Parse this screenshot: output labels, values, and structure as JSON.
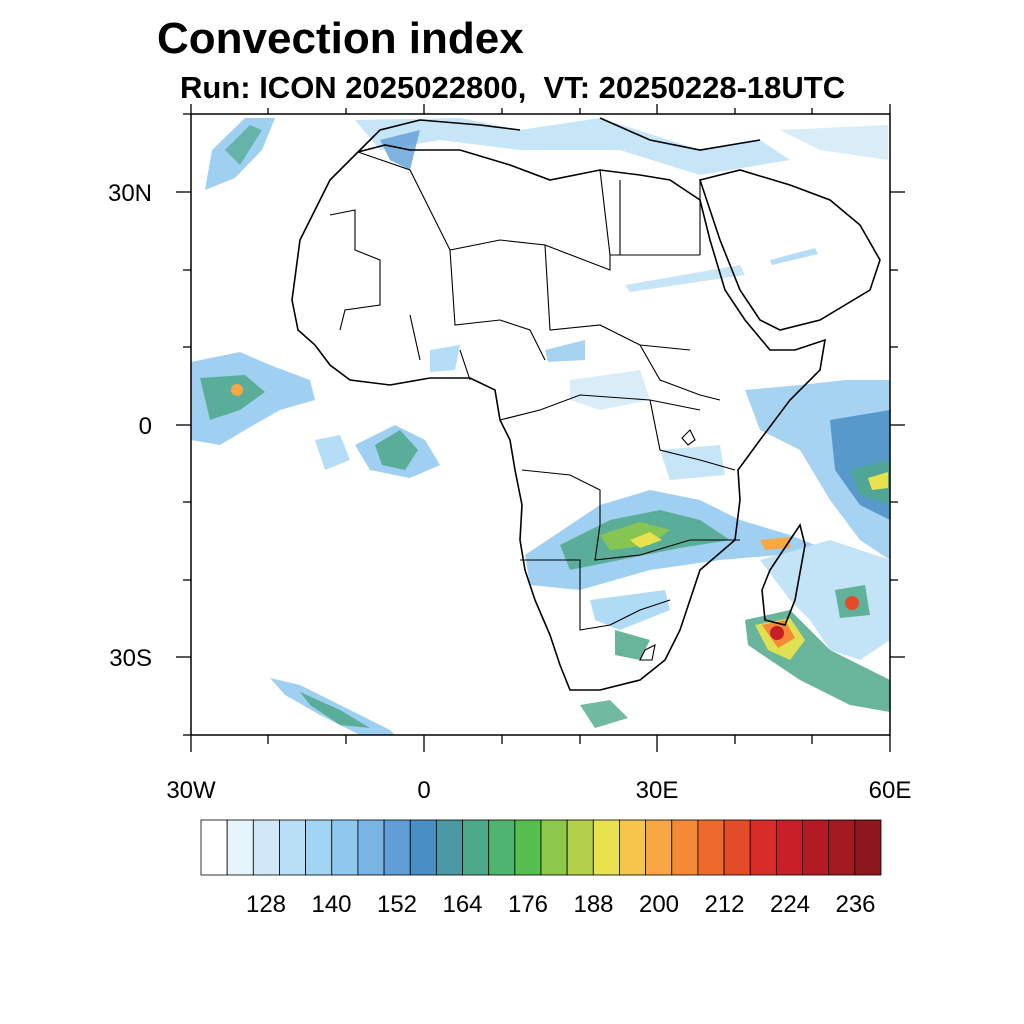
{
  "title": "Convection index",
  "subtitle": "Run: ICON 2025022800,  VT: 20250228-18UTC",
  "map": {
    "extent": {
      "lon_min": -30,
      "lon_max": 60,
      "lat_min": -40,
      "lat_max": 40
    },
    "lat_ticks": [
      {
        "label": "30N",
        "lat": 30
      },
      {
        "label": "0",
        "lat": 0
      },
      {
        "label": "30S",
        "lat": -30
      }
    ],
    "lon_ticks": [
      {
        "label": "30W",
        "lon": -30
      },
      {
        "label": "0",
        "lon": 0
      },
      {
        "label": "30E",
        "lon": 30
      },
      {
        "label": "60E",
        "lon": 60
      }
    ]
  },
  "colorbar": {
    "labels": [
      "128",
      "140",
      "152",
      "164",
      "176",
      "188",
      "200",
      "212",
      "224",
      "236"
    ],
    "colors": [
      "#ffffff",
      "#e6f4fc",
      "#cfe9f8",
      "#b8def5",
      "#a2d5f3",
      "#8ec8ee",
      "#78b5e3",
      "#5f9fd6",
      "#4a8ec6",
      "#4a99a4",
      "#4ea88a",
      "#4fb46f",
      "#56bd4f",
      "#8cc84a",
      "#b5d04a",
      "#e8e24e",
      "#f6c64c",
      "#f7a744",
      "#f48a38",
      "#ee6a2c",
      "#e44b28",
      "#d82c28",
      "#c81e28",
      "#b31a24",
      "#a11a20",
      "#8c171c"
    ]
  }
}
